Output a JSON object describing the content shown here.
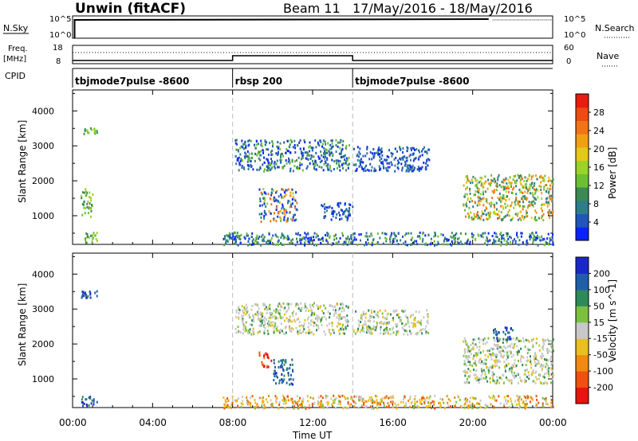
{
  "header": {
    "site": "Unwin (fitACF)",
    "beam": "Beam 11",
    "date_range": "17/May/2016 - 18/May/2016"
  },
  "top_panels": {
    "nsky_label": "N.Sky",
    "nsearch_label": "N.Search",
    "nsky_ticks": [
      "10^5",
      "10^0"
    ],
    "freq_label": "Freq.",
    "freq_unit": "[MHz]",
    "freq_ticks": [
      "18",
      "8"
    ],
    "nave_label": "Nave",
    "nave_ticks": [
      "60",
      "0"
    ],
    "cpid_label": "CPID",
    "cpid_segments": [
      {
        "label": "tbjmode7pulse -8600",
        "start_h": 0,
        "end_h": 8
      },
      {
        "label": "rbsp 200",
        "start_h": 8,
        "end_h": 14
      },
      {
        "label": "tbjmode7pulse -8600",
        "start_h": 14,
        "end_h": 24
      }
    ],
    "frequency_steps": [
      {
        "start_h": 0,
        "end_h": 8,
        "value": "low"
      },
      {
        "start_h": 8,
        "end_h": 14,
        "value": "high"
      },
      {
        "start_h": 14,
        "end_h": 24,
        "value": "low"
      }
    ]
  },
  "x_axis": {
    "label": "Time UT",
    "ticks": [
      "00:00",
      "04:00",
      "08:00",
      "12:00",
      "16:00",
      "20:00",
      "00:00"
    ]
  },
  "chart_data": [
    {
      "type": "heatmap",
      "title": "",
      "xlabel": "Time UT",
      "ylabel": "Slant Range [km]",
      "xlim": [
        0,
        24
      ],
      "ylim": [
        180,
        4600
      ],
      "yticks": [
        1000,
        2000,
        3000,
        4000
      ],
      "colorbar": {
        "label": "Power [dB]",
        "range": [
          0,
          32
        ],
        "ticks": [
          4,
          8,
          12,
          16,
          20,
          24,
          28
        ],
        "colors": [
          "#0a22ff",
          "#1f56b8",
          "#2e7d8a",
          "#3b8a55",
          "#6bbf35",
          "#9bd32a",
          "#e6c81a",
          "#f0a012",
          "#f07418",
          "#f04a14",
          "#e81c10"
        ]
      },
      "echo_regions": [
        {
          "start_h": 0.4,
          "end_h": 1.2,
          "range_km": [
            3350,
            3550
          ],
          "level": "green"
        },
        {
          "start_h": 0.4,
          "end_h": 1.0,
          "range_km": [
            1000,
            1800
          ],
          "level": "green"
        },
        {
          "start_h": 0.4,
          "end_h": 1.2,
          "range_km": [
            250,
            550
          ],
          "level": "green"
        },
        {
          "start_h": 8.1,
          "end_h": 13.8,
          "range_km": [
            2300,
            3200
          ],
          "level": "blue-green"
        },
        {
          "start_h": 9.3,
          "end_h": 11.2,
          "range_km": [
            850,
            1800
          ],
          "level": "blue-orange"
        },
        {
          "start_h": 12.4,
          "end_h": 14.0,
          "range_km": [
            900,
            1400
          ],
          "level": "blue"
        },
        {
          "start_h": 14.0,
          "end_h": 17.8,
          "range_km": [
            2300,
            3000
          ],
          "level": "blue"
        },
        {
          "start_h": 19.5,
          "end_h": 24.0,
          "range_km": [
            900,
            2200
          ],
          "level": "green-orange"
        },
        {
          "start_h": 7.5,
          "end_h": 24.0,
          "range_km": [
            180,
            550
          ],
          "level": "blue-green"
        }
      ]
    },
    {
      "type": "heatmap",
      "title": "",
      "xlabel": "Time UT",
      "ylabel": "Slant Range [km]",
      "xlim": [
        0,
        24
      ],
      "ylim": [
        180,
        4600
      ],
      "yticks": [
        1000,
        2000,
        3000,
        4000
      ],
      "colorbar": {
        "label": "Velocity [m s^-1]",
        "ticks": [
          200,
          100,
          50,
          15,
          -15,
          -50,
          -100,
          -200
        ],
        "colors": [
          "#1a28c8",
          "#1f5fa8",
          "#2e8a5a",
          "#7cc040",
          "#c8c8c8",
          "#e8c020",
          "#f08a10",
          "#f05010",
          "#e81410"
        ]
      },
      "echo_regions": [
        {
          "start_h": 0.4,
          "end_h": 1.2,
          "range_km": [
            3350,
            3550
          ],
          "level": "blue"
        },
        {
          "start_h": 0.4,
          "end_h": 1.2,
          "range_km": [
            250,
            550
          ],
          "level": "blue"
        },
        {
          "start_h": 8.1,
          "end_h": 13.8,
          "range_km": [
            2300,
            3200
          ],
          "level": "gray"
        },
        {
          "start_h": 9.3,
          "end_h": 9.9,
          "range_km": [
            1300,
            1800
          ],
          "level": "red-orange"
        },
        {
          "start_h": 10.0,
          "end_h": 11.0,
          "range_km": [
            850,
            1600
          ],
          "level": "blue"
        },
        {
          "start_h": 14.0,
          "end_h": 17.8,
          "range_km": [
            2300,
            3000
          ],
          "level": "gray"
        },
        {
          "start_h": 19.5,
          "end_h": 24.0,
          "range_km": [
            900,
            2200
          ],
          "level": "gray"
        },
        {
          "start_h": 21.0,
          "end_h": 22.0,
          "range_km": [
            2100,
            2500
          ],
          "level": "blue"
        },
        {
          "start_h": 7.5,
          "end_h": 24.0,
          "range_km": [
            180,
            550
          ],
          "level": "yellow-orange"
        }
      ]
    }
  ]
}
